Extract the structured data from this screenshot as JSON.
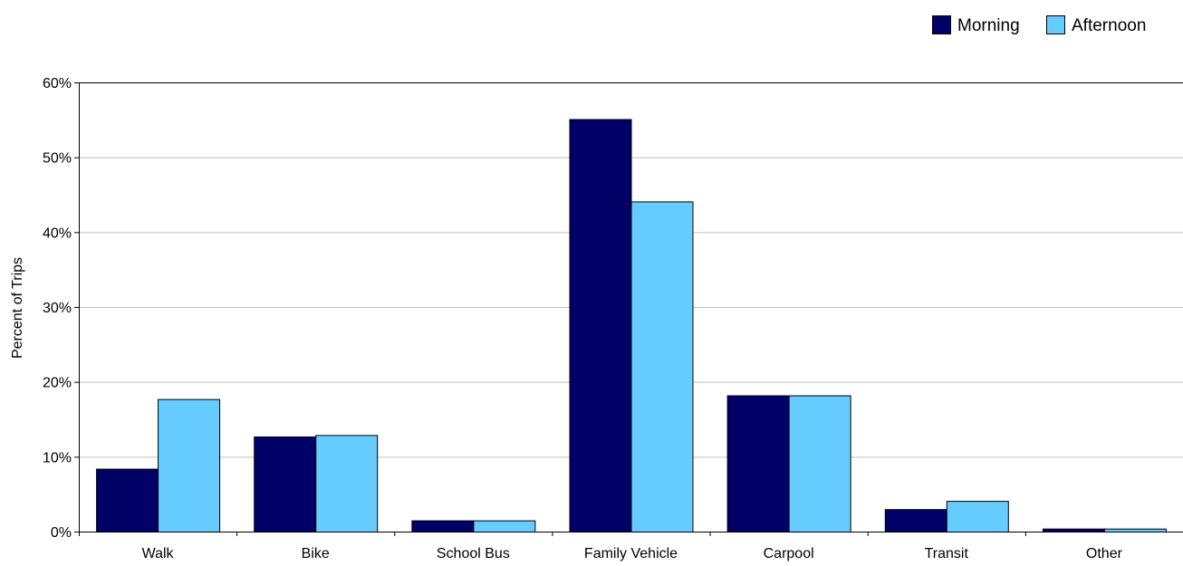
{
  "chart_data": {
    "type": "bar",
    "title": "",
    "xlabel": "",
    "ylabel": "Percent of Trips",
    "categories": [
      "Walk",
      "Bike",
      "School Bus",
      "Family Vehicle",
      "Carpool",
      "Transit",
      "Other"
    ],
    "series": [
      {
        "name": "Morning",
        "color": "#000066",
        "values": [
          8.4,
          12.7,
          1.5,
          55.1,
          18.2,
          3.0,
          0.4
        ]
      },
      {
        "name": "Afternoon",
        "color": "#66CCFF",
        "values": [
          17.7,
          12.9,
          1.5,
          44.1,
          18.2,
          4.1,
          0.4
        ]
      }
    ],
    "ylim": [
      0,
      60
    ],
    "yticks": [
      0,
      10,
      20,
      30,
      40,
      50,
      60
    ],
    "ytick_labels": [
      "0%",
      "10%",
      "20%",
      "30%",
      "40%",
      "50%",
      "60%"
    ],
    "grid": true,
    "grid_color": "#c0c0c0",
    "legend_position": "top-right"
  }
}
